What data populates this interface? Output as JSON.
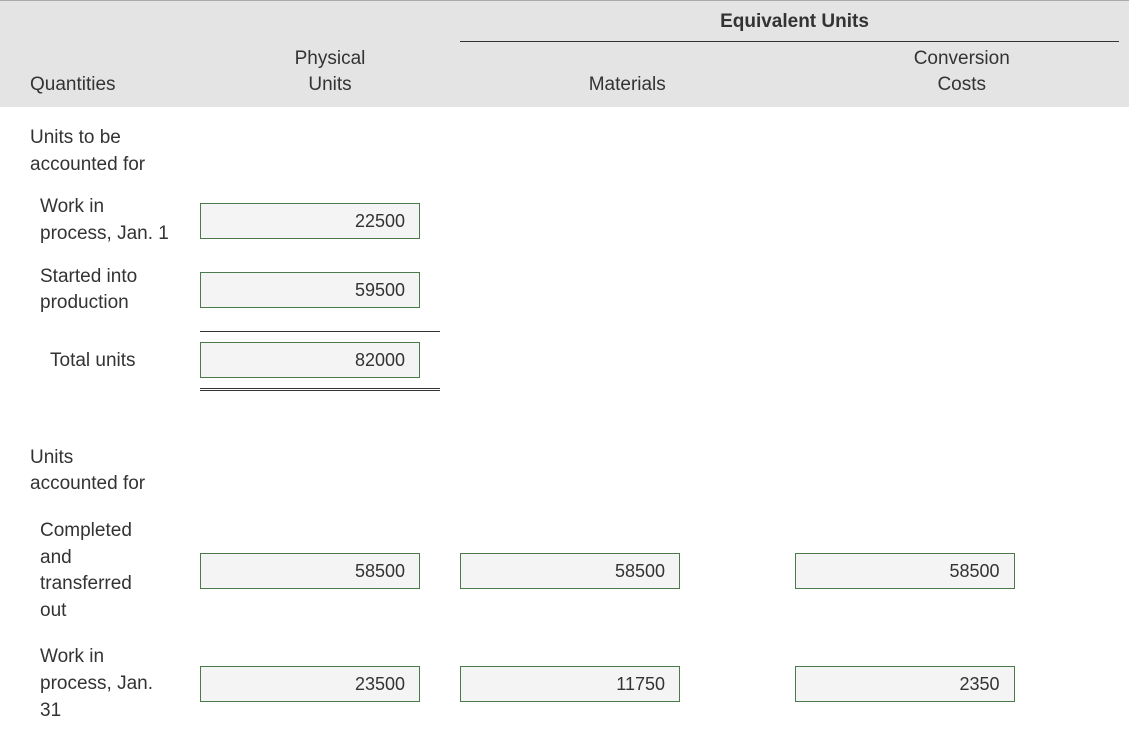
{
  "header": {
    "equivalent_units": "Equivalent Units",
    "quantities": "Quantities",
    "physical_units": "Physical\nUnits",
    "materials": "Materials",
    "conversion_costs": "Conversion\nCosts"
  },
  "sections": {
    "to_account": "Units to be\naccounted for",
    "accounted": "Units\naccounted for"
  },
  "rows": {
    "wip_jan1": {
      "label": "Work in\nprocess, Jan. 1",
      "physical": "22500"
    },
    "started": {
      "label": "Started into\nproduction",
      "physical": "59500"
    },
    "total_units": {
      "label": "Total units",
      "physical": "82000"
    },
    "completed": {
      "label": "Completed\nand\ntransferred\nout",
      "physical": "58500",
      "materials": "58500",
      "conversion": "58500"
    },
    "wip_jan31": {
      "label": "Work in\nprocess, Jan.\n31",
      "physical": "23500",
      "materials": "11750",
      "conversion": "2350"
    }
  },
  "style": {
    "input_bg": "#f4f4f4",
    "input_border": "#4a7a4a",
    "header_bg": "#e4e4e4",
    "text_color": "#333333",
    "font_size_body": 19,
    "font_size_input": 18
  }
}
